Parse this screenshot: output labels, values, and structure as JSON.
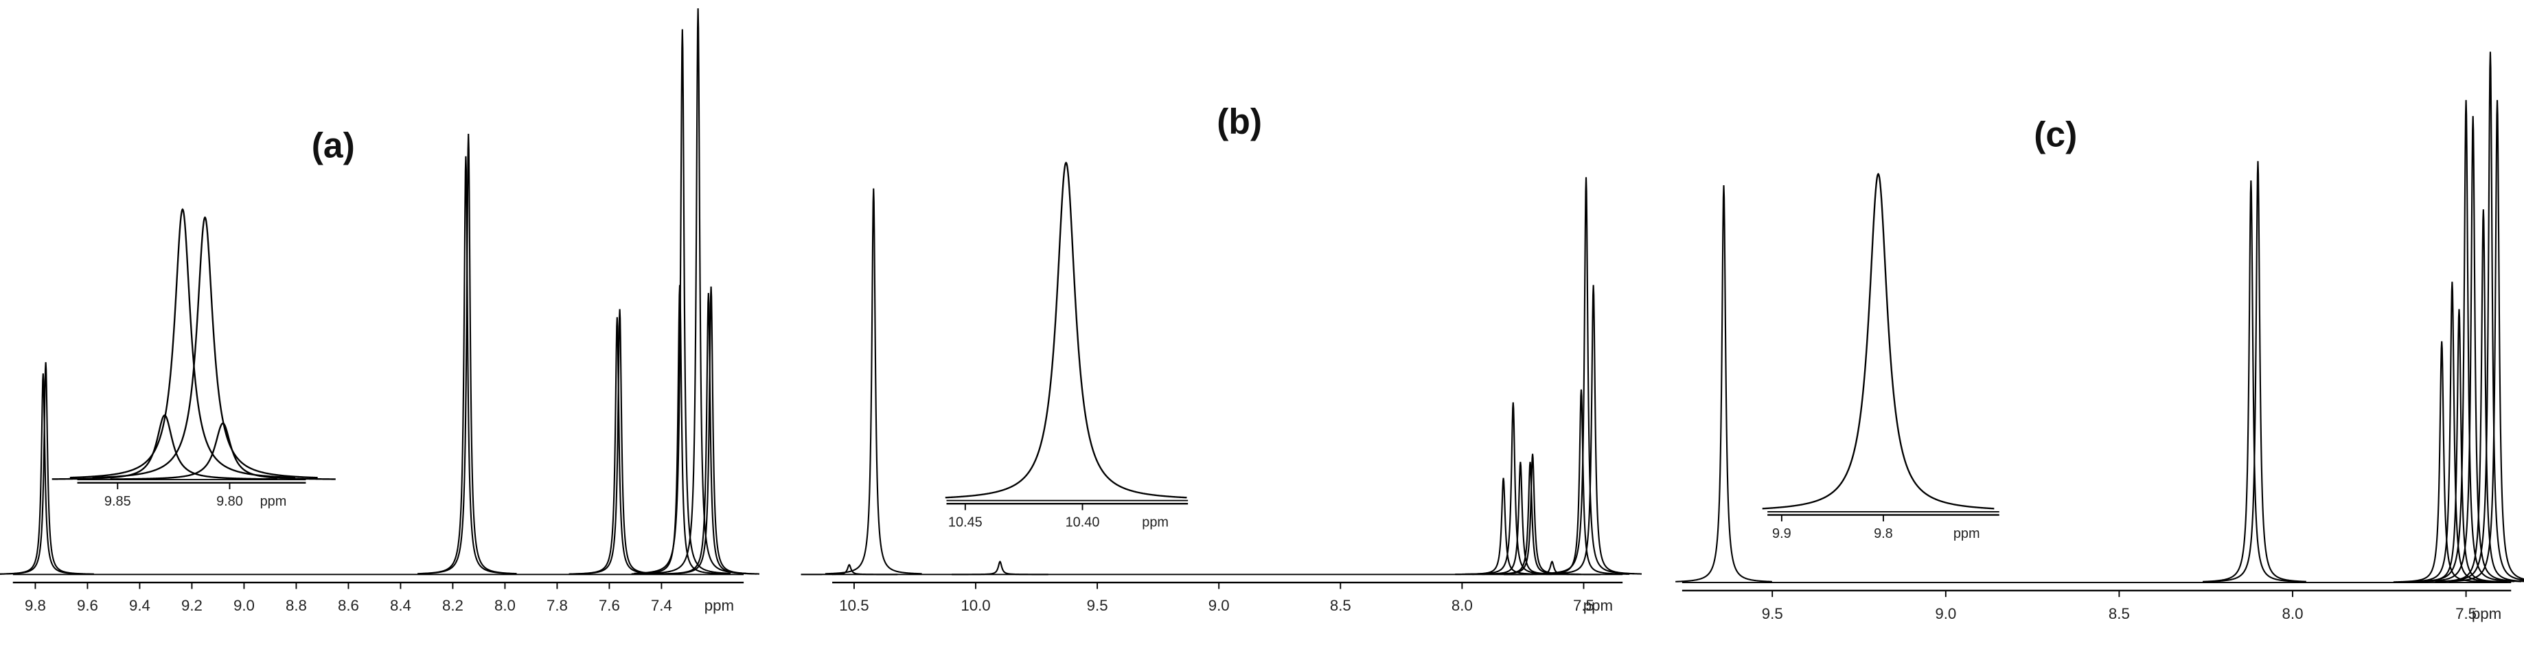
{
  "chart_data": [
    {
      "type": "spectrum",
      "label": "(a)",
      "x_label": "ppm",
      "xlim": [
        9.886,
        7.085
      ],
      "xticks": [
        9.8,
        9.6,
        9.4,
        9.2,
        {
          "value": 9,
          "label": "9.0"
        },
        8.8,
        8.6,
        8.4,
        8.2,
        {
          "value": 8,
          "label": "8.0"
        },
        7.8,
        7.6,
        7.4
      ],
      "x": [
        9.77,
        9.76,
        8.15,
        8.14,
        7.57,
        7.56,
        7.33,
        7.32,
        7.26,
        7.22,
        7.21
      ],
      "values": [
        125,
        132,
        260,
        274,
        160,
        165,
        180,
        339,
        352,
        175,
        179
      ],
      "inset": {
        "x_label": "ppm",
        "xlim": [
          9.868,
          9.766
        ],
        "xticks": [
          9.85,
          {
            "value": 9.8,
            "label": "9.80"
          }
        ],
        "x": [
          9.829,
          9.821,
          9.811,
          9.803
        ],
        "values": [
          40,
          168,
          163,
          35
        ]
      }
    },
    {
      "type": "spectrum",
      "label": "(b)",
      "x_label": "ppm",
      "xlim": [
        10.59,
        7.34
      ],
      "xticks": [
        10.5,
        {
          "value": 10,
          "label": "10.0"
        },
        9.5,
        {
          "value": 9,
          "label": "9.0"
        },
        8.5,
        {
          "value": 8,
          "label": "8.0"
        },
        7.5
      ],
      "x": [
        10.52,
        10.42,
        9.9,
        7.83,
        7.79,
        7.76,
        7.72,
        7.71,
        7.63,
        7.51,
        7.49,
        7.46
      ],
      "values": [
        6,
        240,
        8,
        60,
        107,
        70,
        70,
        75,
        8,
        115,
        247,
        180
      ],
      "inset": {
        "x_label": "ppm",
        "xlim": [
          10.458,
          10.355
        ],
        "xticks": [
          10.45,
          {
            "value": 10.4,
            "label": "10.40"
          }
        ],
        "x": [
          10.407
        ],
        "values": [
          210
        ]
      }
    },
    {
      "type": "spectrum",
      "label": "(c)",
      "x_label": "ppm",
      "xlim": [
        9.76,
        7.37
      ],
      "xticks": [
        9.5,
        {
          "value": 9,
          "label": "9.0"
        },
        8.5,
        {
          "value": 8,
          "label": "8.0"
        },
        7.5
      ],
      "x": [
        9.64,
        8.12,
        8.1,
        7.57,
        7.54,
        7.52,
        7.5,
        7.48,
        7.45,
        7.43,
        7.41
      ],
      "values": [
        247,
        250,
        262,
        150,
        187,
        170,
        300,
        290,
        232,
        330,
        300
      ],
      "inset": {
        "x_label": "ppm",
        "xlim": [
          9.914,
          9.686
        ],
        "xticks": [
          9.9,
          9.8
        ],
        "x": [
          9.805
        ],
        "values": [
          210
        ]
      }
    }
  ]
}
